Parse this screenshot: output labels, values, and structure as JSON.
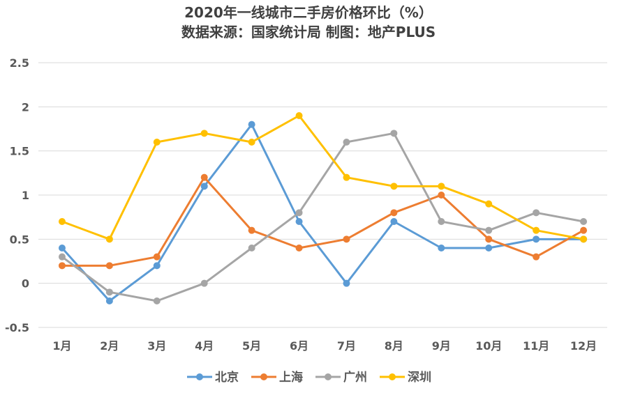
{
  "chart_data": {
    "type": "line",
    "title": "2020年一线城市二手房价格环比（%）",
    "subtitle": "数据来源：国家统计局 制图：地产PLUS",
    "categories": [
      "1月",
      "2月",
      "3月",
      "4月",
      "5月",
      "6月",
      "7月",
      "8月",
      "9月",
      "10月",
      "11月",
      "12月"
    ],
    "ylim": [
      -0.5,
      2.5
    ],
    "yticks": [
      -0.5,
      0,
      0.5,
      1,
      1.5,
      2,
      2.5
    ],
    "ytick_labels": [
      "-0.5",
      "0",
      "0.5",
      "1",
      "1.5",
      "2",
      "2.5"
    ],
    "grid": true,
    "legend_position": "bottom",
    "series": [
      {
        "name": "北京",
        "color": "#5B9BD5",
        "values": [
          0.4,
          -0.2,
          0.2,
          1.1,
          1.8,
          0.7,
          0.0,
          0.7,
          0.4,
          0.4,
          0.5,
          0.5
        ]
      },
      {
        "name": "上海",
        "color": "#ED7D31",
        "values": [
          0.2,
          0.2,
          0.3,
          1.2,
          0.6,
          0.4,
          0.5,
          0.8,
          1.0,
          0.5,
          0.3,
          0.6
        ]
      },
      {
        "name": "广州",
        "color": "#A5A5A5",
        "values": [
          0.3,
          -0.1,
          -0.2,
          0.0,
          0.4,
          0.8,
          1.6,
          1.7,
          0.7,
          0.6,
          0.8,
          0.7
        ]
      },
      {
        "name": "深圳",
        "color": "#FFC000",
        "values": [
          0.7,
          0.5,
          1.6,
          1.7,
          1.6,
          1.9,
          1.2,
          1.1,
          1.1,
          0.9,
          0.6,
          0.5
        ]
      }
    ]
  }
}
